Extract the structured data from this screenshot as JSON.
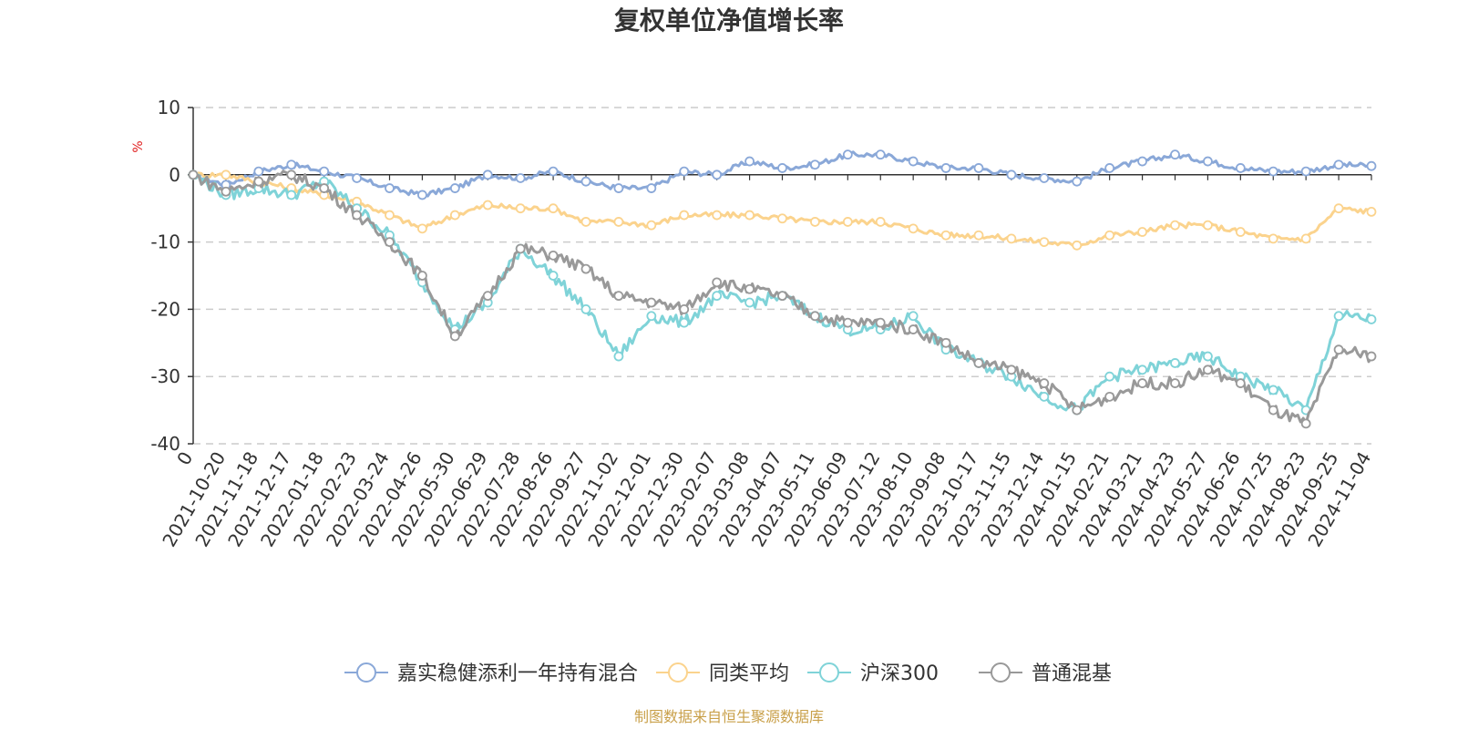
{
  "chart_data": {
    "type": "line",
    "title": "复权单位净值增长率",
    "ylabel": "%",
    "ylim": [
      -40,
      10
    ],
    "yticks": [
      10,
      0,
      -10,
      -20,
      -30,
      -40
    ],
    "x_start_label": "0",
    "x_tick_labels": [
      "2021-10-20",
      "2021-11-18",
      "2021-12-17",
      "2022-01-18",
      "2022-02-23",
      "2022-03-24",
      "2022-04-26",
      "2022-05-30",
      "2022-06-29",
      "2022-07-28",
      "2022-08-26",
      "2022-09-27",
      "2022-11-02",
      "2022-12-01",
      "2022-12-30",
      "2023-02-07",
      "2023-03-08",
      "2023-04-07",
      "2023-05-11",
      "2023-06-09",
      "2023-07-12",
      "2023-08-10",
      "2023-09-08",
      "2023-10-17",
      "2023-11-15",
      "2023-12-14",
      "2024-01-15",
      "2024-02-21",
      "2024-03-21",
      "2024-04-23",
      "2024-05-27",
      "2024-06-26",
      "2024-07-25",
      "2024-08-23",
      "2024-09-25",
      "2024-11-04"
    ],
    "x": [
      "0",
      "2021-10-20",
      "2021-11-18",
      "2021-12-17",
      "2022-01-18",
      "2022-02-23",
      "2022-03-24",
      "2022-04-26",
      "2022-05-30",
      "2022-06-29",
      "2022-07-28",
      "2022-08-26",
      "2022-09-27",
      "2022-11-02",
      "2022-12-01",
      "2022-12-30",
      "2023-02-07",
      "2023-03-08",
      "2023-04-07",
      "2023-05-11",
      "2023-06-09",
      "2023-07-12",
      "2023-08-10",
      "2023-09-08",
      "2023-10-17",
      "2023-11-15",
      "2023-12-14",
      "2024-01-15",
      "2024-02-21",
      "2024-03-21",
      "2024-04-23",
      "2024-05-27",
      "2024-06-26",
      "2024-07-25",
      "2024-08-23",
      "2024-09-25",
      "2024-11-04"
    ],
    "series": [
      {
        "name": "嘉实稳健添利一年持有混合",
        "color": "#8aa8d8",
        "values": [
          0,
          -1.5,
          0.5,
          1.5,
          0.5,
          -0.5,
          -2,
          -3,
          -2,
          0,
          -0.5,
          0.5,
          -1,
          -2,
          -2,
          0.5,
          0,
          2,
          1,
          1.5,
          3,
          3,
          2,
          1,
          1,
          0,
          -0.5,
          -1,
          1,
          2,
          3,
          2,
          1,
          0.5,
          0.5,
          1.5,
          1.3
        ]
      },
      {
        "name": "同类平均",
        "color": "#fbd38d",
        "values": [
          0,
          0,
          -1,
          -2,
          -3,
          -4,
          -6,
          -8,
          -6,
          -4.5,
          -5,
          -5,
          -7,
          -7,
          -7.5,
          -6,
          -6,
          -6,
          -6.5,
          -7,
          -7,
          -7,
          -8,
          -9,
          -9,
          -9.5,
          -10,
          -10.5,
          -9,
          -8.5,
          -7.5,
          -7.5,
          -8.5,
          -9.5,
          -9.5,
          -5,
          -5.5
        ]
      },
      {
        "name": "沪深300",
        "color": "#7fd3d8",
        "values": [
          0,
          -3,
          -2,
          -3,
          -1,
          -5,
          -9,
          -16,
          -23,
          -19,
          -11,
          -15,
          -20,
          -27,
          -21,
          -22,
          -18,
          -19,
          -18,
          -21,
          -23,
          -23,
          -21,
          -26,
          -28,
          -30,
          -33,
          -35,
          -30,
          -29,
          -28,
          -27,
          -30,
          -32,
          -35,
          -21,
          -21.5
        ]
      },
      {
        "name": "普通混基",
        "color": "#999999",
        "values": [
          0,
          -2.5,
          -1,
          0,
          -2,
          -6,
          -10,
          -15,
          -24,
          -18,
          -11,
          -12,
          -14,
          -18,
          -19,
          -20,
          -16,
          -17,
          -18,
          -21,
          -22,
          -22,
          -23,
          -25,
          -28,
          -29,
          -31,
          -35,
          -33,
          -31,
          -31,
          -29,
          -31,
          -35,
          -37,
          -26,
          -27
        ]
      }
    ]
  },
  "legend": [
    {
      "label": "嘉实稳健添利一年持有混合",
      "color": "#8aa8d8"
    },
    {
      "label": "同类平均",
      "color": "#fbd38d"
    },
    {
      "label": "沪深300",
      "color": "#7fd3d8"
    },
    {
      "label": "普通混基",
      "color": "#999999"
    }
  ],
  "source": "制图数据来自恒生聚源数据库"
}
